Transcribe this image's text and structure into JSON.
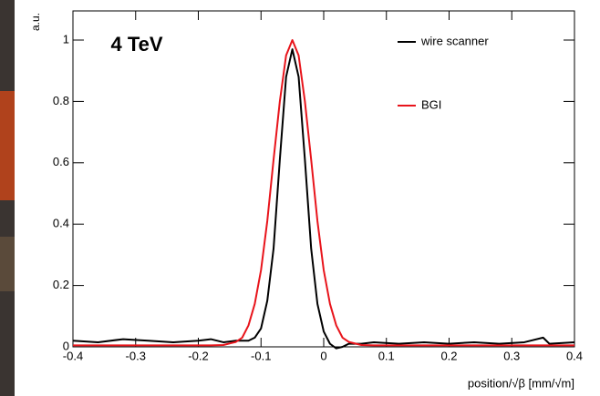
{
  "chart_data": {
    "type": "line",
    "title": "4 TeV",
    "y_label": "a.u.",
    "x_label": "position/√β [mm/√m]",
    "x": [
      -0.4,
      -0.36,
      -0.32,
      -0.28,
      -0.24,
      -0.2,
      -0.18,
      -0.16,
      -0.14,
      -0.13,
      -0.12,
      -0.11,
      -0.1,
      -0.09,
      -0.08,
      -0.07,
      -0.06,
      -0.05,
      -0.04,
      -0.03,
      -0.02,
      -0.01,
      0,
      0.01,
      0.02,
      0.03,
      0.04,
      0.06,
      0.08,
      0.12,
      0.16,
      0.2,
      0.24,
      0.28,
      0.32,
      0.35,
      0.36,
      0.4
    ],
    "series": [
      {
        "name": "wire scanner",
        "color": "#000000",
        "values": [
          0.02,
          0.015,
          0.025,
          0.02,
          0.015,
          0.02,
          0.025,
          0.015,
          0.02,
          0.02,
          0.02,
          0.03,
          0.06,
          0.15,
          0.32,
          0.61,
          0.88,
          0.97,
          0.88,
          0.61,
          0.32,
          0.14,
          0.05,
          0.01,
          -0.005,
          0.0,
          0.01,
          0.01,
          0.015,
          0.01,
          0.015,
          0.01,
          0.015,
          0.01,
          0.015,
          0.03,
          0.01,
          0.015
        ]
      },
      {
        "name": "BGI",
        "color": "#e8141b",
        "values": [
          0.005,
          0.005,
          0.005,
          0.005,
          0.005,
          0.005,
          0.005,
          0.006,
          0.016,
          0.03,
          0.07,
          0.14,
          0.25,
          0.41,
          0.61,
          0.8,
          0.95,
          1.0,
          0.95,
          0.8,
          0.61,
          0.41,
          0.25,
          0.14,
          0.07,
          0.03,
          0.016,
          0.006,
          0.005,
          0.005,
          0.005,
          0.005,
          0.005,
          0.005,
          0.005,
          0.005,
          0.005,
          0.005
        ]
      }
    ],
    "xlim": [
      -0.4,
      0.4
    ],
    "ylim": [
      0,
      1.095
    ],
    "xticks": [
      -0.4,
      -0.3,
      -0.2,
      -0.1,
      0,
      0.1,
      0.2,
      0.3,
      0.4
    ],
    "yticks": [
      0,
      0.2,
      0.4,
      0.6,
      0.8,
      1
    ],
    "grid": false,
    "legend": "top-right"
  }
}
